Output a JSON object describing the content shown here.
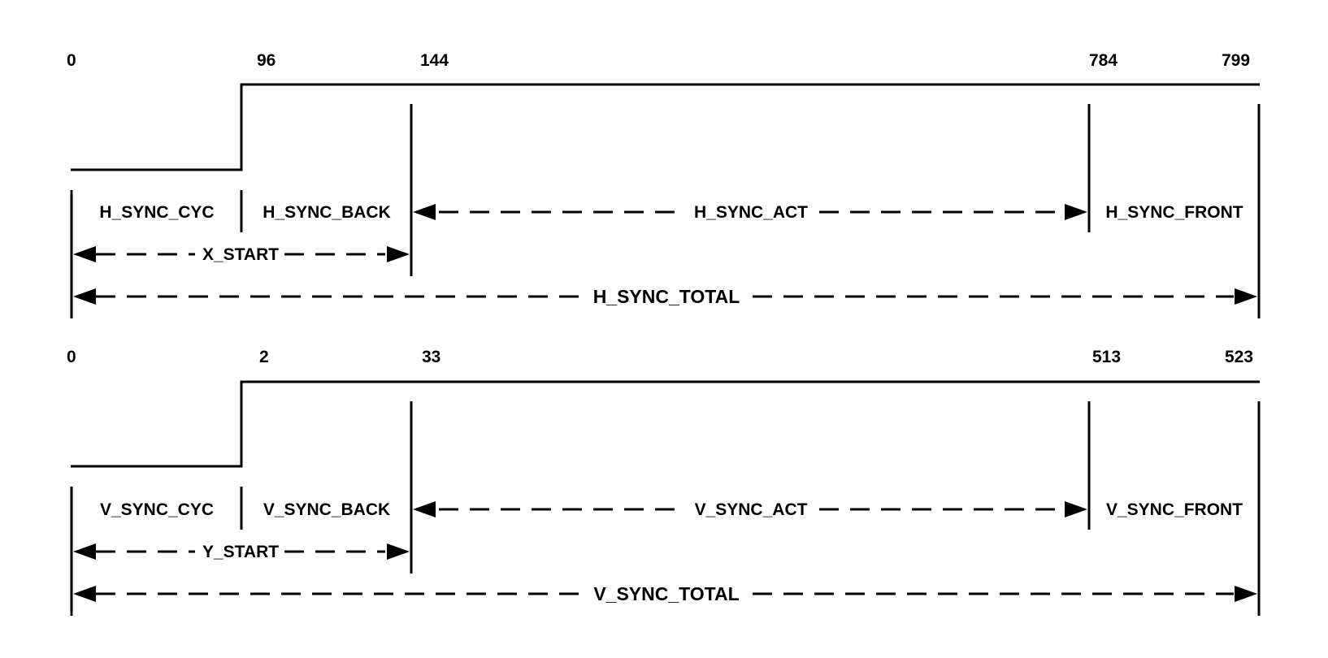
{
  "horizontal": {
    "ticks": [
      "0",
      "96",
      "144",
      "784",
      "799"
    ],
    "segments": {
      "cyc": "H_SYNC_CYC",
      "back": "H_SYNC_BACK",
      "act": "H_SYNC_ACT",
      "front": "H_SYNC_FRONT"
    },
    "start": "X_START",
    "total": "H_SYNC_TOTAL"
  },
  "vertical": {
    "ticks": [
      "0",
      "2",
      "33",
      "513",
      "523"
    ],
    "segments": {
      "cyc": "V_SYNC_CYC",
      "back": "V_SYNC_BACK",
      "act": "V_SYNC_ACT",
      "front": "V_SYNC_FRONT"
    },
    "start": "Y_START",
    "total": "V_SYNC_TOTAL"
  }
}
